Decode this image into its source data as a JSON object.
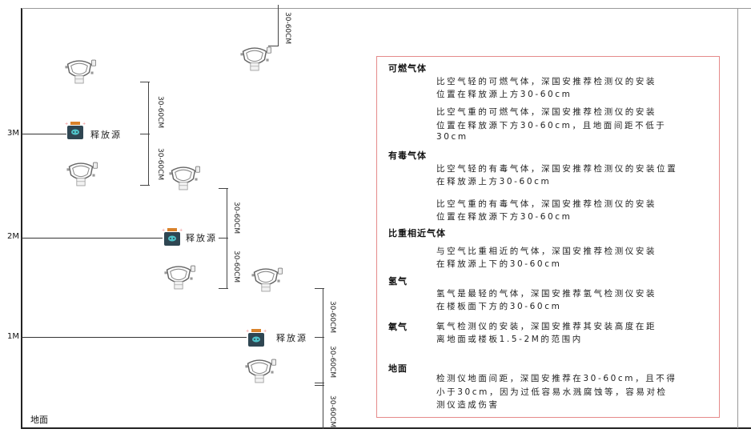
{
  "levels": {
    "m3": "3M",
    "m2": "2M",
    "m1": "1M",
    "ground": "地面"
  },
  "source_label": "释放源",
  "dimension_label": "30-60CM",
  "panel": {
    "sections": [
      {
        "heading": "可燃气体",
        "paragraphs": [
          [
            "比空气轻的可燃气体，深国安推荐检测仪的安装",
            "位置在释放源上方30-60cm"
          ],
          [
            "比空气重的可燃气体，深国安推荐检测仪的安装",
            "位置在释放源下方30-60cm，且地面间距不低于",
            "30cm"
          ]
        ]
      },
      {
        "heading": "有毒气体",
        "paragraphs": [
          [
            "比空气轻的有毒气体，深国安推荐检测仪的安装位置",
            "在释放源上方30-60cm"
          ],
          [
            "比空气重的有毒气体，深国安推荐检测仪的安装",
            "位置在释放源下方30-60cm"
          ]
        ]
      },
      {
        "heading": "比重相近气体",
        "paragraphs": [
          [
            "与空气比重相近的气体，深国安推荐检测仪安装",
            "在释放源上下的30-60cm"
          ]
        ]
      },
      {
        "heading": "氢气",
        "paragraphs": [
          [
            "氢气是最轻的气体，深国安推荐氢气检测仪安装",
            "在楼板面下方的30-60cm"
          ]
        ]
      },
      {
        "heading": "氧气",
        "paragraphs": [
          [
            "氧气检测仪的安装，深国安推荐其安装高度在距",
            "离地面或楼板1.5-2M的范围内"
          ]
        ]
      },
      {
        "heading": "地面",
        "paragraphs": [
          [
            "检测仪地面间距，深国安推荐在30-60cm，且不得",
            "小于30cm，因为过低容易水溅腐蚀等，容易对检",
            "测仪造成伤害"
          ]
        ]
      }
    ]
  },
  "colors": {
    "panel_border": "#e58a8a",
    "source_body": "#2f4652",
    "source_cap": "#d9822b",
    "source_face": "#4fc3c9"
  }
}
